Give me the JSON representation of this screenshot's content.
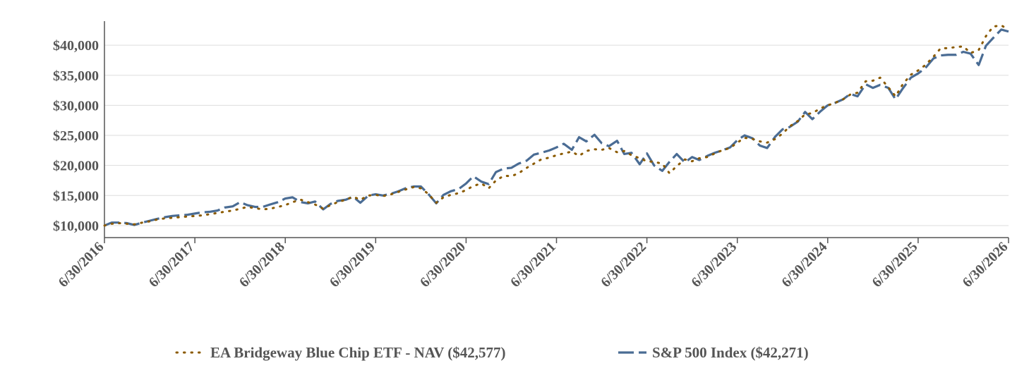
{
  "chart_data": {
    "type": "line",
    "title": "",
    "xlabel": "",
    "ylabel": "",
    "x_tick_labels": [
      "6/30/2016",
      "6/30/2017",
      "6/30/2018",
      "6/30/2019",
      "6/30/2020",
      "6/30/2021",
      "6/30/2022",
      "6/30/2023",
      "6/30/2024",
      "6/30/2025",
      "6/30/2026"
    ],
    "y_tick_labels": [
      "$10,000",
      "$15,000",
      "$20,000",
      "$25,000",
      "$30,000",
      "$35,000",
      "$40,000"
    ],
    "y_ticks": [
      10000,
      15000,
      20000,
      25000,
      30000,
      35000,
      40000
    ],
    "x_range": [
      2016.5,
      2026.5
    ],
    "ylim": [
      8000,
      44000
    ],
    "grid": "horizontal",
    "legend_position": "bottom",
    "colors": {
      "etf": "#8B5A00",
      "index": "#4A6C94",
      "grid": "#dddddd",
      "axis": "#555555"
    },
    "series": [
      {
        "name": "EA Bridgeway Blue Chip ETF - NAV ($42,577)",
        "style": "dotted",
        "points": [
          [
            2016.5,
            10000
          ],
          [
            2016.58,
            10300
          ],
          [
            2016.67,
            10400
          ],
          [
            2016.75,
            10300
          ],
          [
            2016.83,
            10200
          ],
          [
            2016.92,
            10500
          ],
          [
            2017.0,
            10700
          ],
          [
            2017.08,
            11000
          ],
          [
            2017.17,
            11200
          ],
          [
            2017.25,
            11300
          ],
          [
            2017.33,
            11400
          ],
          [
            2017.42,
            11500
          ],
          [
            2017.5,
            11600
          ],
          [
            2017.58,
            11700
          ],
          [
            2017.67,
            11900
          ],
          [
            2017.75,
            12100
          ],
          [
            2017.83,
            12300
          ],
          [
            2017.92,
            12500
          ],
          [
            2018.0,
            12800
          ],
          [
            2018.08,
            13100
          ],
          [
            2018.17,
            12900
          ],
          [
            2018.25,
            12700
          ],
          [
            2018.33,
            12800
          ],
          [
            2018.42,
            13100
          ],
          [
            2018.5,
            13400
          ],
          [
            2018.58,
            13900
          ],
          [
            2018.67,
            14300
          ],
          [
            2018.75,
            13900
          ],
          [
            2018.83,
            13500
          ],
          [
            2018.92,
            12800
          ],
          [
            2019.0,
            13400
          ],
          [
            2019.08,
            13900
          ],
          [
            2019.17,
            14300
          ],
          [
            2019.25,
            14800
          ],
          [
            2019.33,
            14300
          ],
          [
            2019.42,
            15000
          ],
          [
            2019.5,
            15100
          ],
          [
            2019.58,
            14900
          ],
          [
            2019.67,
            15200
          ],
          [
            2019.75,
            15600
          ],
          [
            2019.83,
            16000
          ],
          [
            2019.92,
            16400
          ],
          [
            2020.0,
            16200
          ],
          [
            2020.08,
            15300
          ],
          [
            2020.17,
            13800
          ],
          [
            2020.25,
            14700
          ],
          [
            2020.33,
            15100
          ],
          [
            2020.42,
            15400
          ],
          [
            2020.5,
            15900
          ],
          [
            2020.58,
            16600
          ],
          [
            2020.67,
            17000
          ],
          [
            2020.75,
            16200
          ],
          [
            2020.83,
            17500
          ],
          [
            2020.92,
            18300
          ],
          [
            2021.0,
            18200
          ],
          [
            2021.08,
            18700
          ],
          [
            2021.17,
            19600
          ],
          [
            2021.25,
            20300
          ],
          [
            2021.33,
            21000
          ],
          [
            2021.42,
            21300
          ],
          [
            2021.5,
            21700
          ],
          [
            2021.58,
            22000
          ],
          [
            2021.67,
            22300
          ],
          [
            2021.75,
            21600
          ],
          [
            2021.83,
            22400
          ],
          [
            2021.92,
            22700
          ],
          [
            2022.0,
            22600
          ],
          [
            2022.08,
            22900
          ],
          [
            2022.17,
            22200
          ],
          [
            2022.25,
            22400
          ],
          [
            2022.33,
            21700
          ],
          [
            2022.42,
            21200
          ],
          [
            2022.5,
            20700
          ],
          [
            2022.58,
            20600
          ],
          [
            2022.67,
            20300
          ],
          [
            2022.75,
            18700
          ],
          [
            2022.83,
            19900
          ],
          [
            2022.92,
            21000
          ],
          [
            2023.0,
            20700
          ],
          [
            2023.08,
            21200
          ],
          [
            2023.17,
            21400
          ],
          [
            2023.25,
            22000
          ],
          [
            2023.33,
            22500
          ],
          [
            2023.42,
            22900
          ],
          [
            2023.5,
            23800
          ],
          [
            2023.58,
            24600
          ],
          [
            2023.67,
            24400
          ],
          [
            2023.75,
            24000
          ],
          [
            2023.83,
            23800
          ],
          [
            2023.92,
            24400
          ],
          [
            2024.0,
            25300
          ],
          [
            2024.08,
            26500
          ],
          [
            2024.17,
            27400
          ],
          [
            2024.25,
            28500
          ],
          [
            2024.33,
            28700
          ],
          [
            2024.42,
            29500
          ],
          [
            2024.5,
            30000
          ],
          [
            2024.58,
            30400
          ],
          [
            2024.67,
            31000
          ],
          [
            2024.75,
            31800
          ],
          [
            2024.83,
            32100
          ],
          [
            2024.92,
            34000
          ],
          [
            2025.0,
            34100
          ],
          [
            2025.08,
            34600
          ],
          [
            2025.17,
            33000
          ],
          [
            2025.25,
            31500
          ],
          [
            2025.33,
            33500
          ],
          [
            2025.42,
            35100
          ],
          [
            2025.5,
            35800
          ],
          [
            2025.58,
            36700
          ],
          [
            2025.67,
            38100
          ],
          [
            2025.75,
            39500
          ],
          [
            2025.83,
            39500
          ],
          [
            2025.92,
            39700
          ],
          [
            2026.0,
            39800
          ],
          [
            2026.08,
            38700
          ],
          [
            2026.17,
            39200
          ],
          [
            2026.25,
            41500
          ],
          [
            2026.33,
            43100
          ],
          [
            2026.42,
            43300
          ],
          [
            2026.5,
            42577
          ]
        ]
      },
      {
        "name": "S&P 500 Index ($42,271)",
        "style": "dashed",
        "points": [
          [
            2016.5,
            10000
          ],
          [
            2016.58,
            10500
          ],
          [
            2016.67,
            10500
          ],
          [
            2016.75,
            10400
          ],
          [
            2016.83,
            10100
          ],
          [
            2016.92,
            10500
          ],
          [
            2017.0,
            10800
          ],
          [
            2017.08,
            11100
          ],
          [
            2017.17,
            11400
          ],
          [
            2017.25,
            11600
          ],
          [
            2017.33,
            11700
          ],
          [
            2017.42,
            11800
          ],
          [
            2017.5,
            12000
          ],
          [
            2017.58,
            12200
          ],
          [
            2017.67,
            12300
          ],
          [
            2017.75,
            12500
          ],
          [
            2017.83,
            13000
          ],
          [
            2017.92,
            13200
          ],
          [
            2018.0,
            13900
          ],
          [
            2018.08,
            13400
          ],
          [
            2018.17,
            13100
          ],
          [
            2018.25,
            13100
          ],
          [
            2018.33,
            13500
          ],
          [
            2018.42,
            13900
          ],
          [
            2018.5,
            14500
          ],
          [
            2018.58,
            14700
          ],
          [
            2018.67,
            13900
          ],
          [
            2018.75,
            13700
          ],
          [
            2018.83,
            14000
          ],
          [
            2018.92,
            12700
          ],
          [
            2019.0,
            13600
          ],
          [
            2019.08,
            14100
          ],
          [
            2019.17,
            14300
          ],
          [
            2019.25,
            14800
          ],
          [
            2019.33,
            13800
          ],
          [
            2019.42,
            15000
          ],
          [
            2019.5,
            15200
          ],
          [
            2019.58,
            15000
          ],
          [
            2019.67,
            15300
          ],
          [
            2019.75,
            15700
          ],
          [
            2019.83,
            16200
          ],
          [
            2019.92,
            16500
          ],
          [
            2020.0,
            16500
          ],
          [
            2020.08,
            15300
          ],
          [
            2020.17,
            13700
          ],
          [
            2020.25,
            15100
          ],
          [
            2020.33,
            15700
          ],
          [
            2020.42,
            16100
          ],
          [
            2020.5,
            17000
          ],
          [
            2020.58,
            18200
          ],
          [
            2020.67,
            17300
          ],
          [
            2020.75,
            16900
          ],
          [
            2020.83,
            18900
          ],
          [
            2020.92,
            19500
          ],
          [
            2021.0,
            19600
          ],
          [
            2021.08,
            20300
          ],
          [
            2021.17,
            20800
          ],
          [
            2021.25,
            21800
          ],
          [
            2021.33,
            22100
          ],
          [
            2021.42,
            22500
          ],
          [
            2021.5,
            23000
          ],
          [
            2021.58,
            23600
          ],
          [
            2021.67,
            22600
          ],
          [
            2021.75,
            24700
          ],
          [
            2021.83,
            24000
          ],
          [
            2021.92,
            25100
          ],
          [
            2022.0,
            23700
          ],
          [
            2022.08,
            23200
          ],
          [
            2022.17,
            24100
          ],
          [
            2022.25,
            21900
          ],
          [
            2022.33,
            22100
          ],
          [
            2022.42,
            20200
          ],
          [
            2022.5,
            22000
          ],
          [
            2022.58,
            20000
          ],
          [
            2022.67,
            19100
          ],
          [
            2022.75,
            20600
          ],
          [
            2022.83,
            21900
          ],
          [
            2022.92,
            20500
          ],
          [
            2023.0,
            21400
          ],
          [
            2023.08,
            20900
          ],
          [
            2023.17,
            21600
          ],
          [
            2023.25,
            22100
          ],
          [
            2023.33,
            22500
          ],
          [
            2023.42,
            23000
          ],
          [
            2023.5,
            24200
          ],
          [
            2023.58,
            25000
          ],
          [
            2023.67,
            24500
          ],
          [
            2023.75,
            23300
          ],
          [
            2023.83,
            22900
          ],
          [
            2023.92,
            24800
          ],
          [
            2024.0,
            26000
          ],
          [
            2024.08,
            26400
          ],
          [
            2024.17,
            27300
          ],
          [
            2024.25,
            28900
          ],
          [
            2024.33,
            27700
          ],
          [
            2024.42,
            29000
          ],
          [
            2024.5,
            30000
          ],
          [
            2024.58,
            30400
          ],
          [
            2024.67,
            31000
          ],
          [
            2024.75,
            31900
          ],
          [
            2024.83,
            31500
          ],
          [
            2024.92,
            33500
          ],
          [
            2025.0,
            32900
          ],
          [
            2025.08,
            33400
          ],
          [
            2025.17,
            32900
          ],
          [
            2025.25,
            31000
          ],
          [
            2025.33,
            32800
          ],
          [
            2025.42,
            34600
          ],
          [
            2025.5,
            35300
          ],
          [
            2025.58,
            36200
          ],
          [
            2025.67,
            37800
          ],
          [
            2025.75,
            38300
          ],
          [
            2025.83,
            38400
          ],
          [
            2025.92,
            38400
          ],
          [
            2026.0,
            38900
          ],
          [
            2026.08,
            38600
          ],
          [
            2026.17,
            36700
          ],
          [
            2026.25,
            39900
          ],
          [
            2026.33,
            41200
          ],
          [
            2026.42,
            42600
          ],
          [
            2026.5,
            42271
          ]
        ]
      }
    ]
  }
}
